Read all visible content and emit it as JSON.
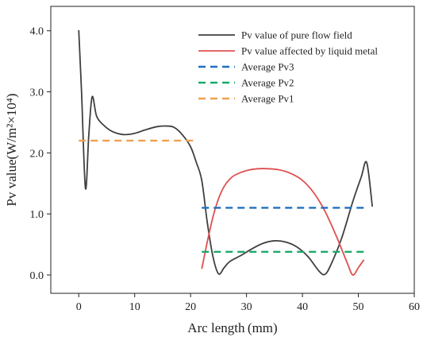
{
  "chart_data": {
    "type": "line",
    "title": "",
    "xlabel": "Arc length (mm)",
    "ylabel": "Pv value(W/m²×10⁴)",
    "xlim": [
      -5,
      60
    ],
    "ylim": [
      -0.3,
      4.4
    ],
    "xticks": [
      0,
      10,
      20,
      30,
      40,
      50,
      60
    ],
    "yticks": [
      0.0,
      1.0,
      2.0,
      3.0,
      4.0
    ],
    "xtick_labels": [
      "0",
      "10",
      "20",
      "30",
      "40",
      "50",
      "60"
    ],
    "ytick_labels": [
      "0.0",
      "1.0",
      "2.0",
      "3.0",
      "4.0"
    ],
    "grid": false,
    "legend_position": "top-right",
    "series": [
      {
        "name": "Pv value of pure flow field",
        "color": "#404040",
        "style": "solid",
        "x": [
          0,
          0.5,
          1.2,
          1.8,
          2.4,
          3.2,
          4.5,
          6,
          8,
          10,
          12,
          14,
          15.5,
          17,
          18.5,
          20,
          21,
          22,
          23,
          24,
          25,
          26,
          27,
          29,
          31,
          33,
          35,
          37,
          39,
          41,
          43,
          44,
          45,
          47,
          49,
          50.5,
          51.5,
          52.5
        ],
        "y": [
          4.01,
          3.0,
          1.42,
          2.3,
          2.92,
          2.6,
          2.45,
          2.35,
          2.3,
          2.32,
          2.38,
          2.43,
          2.44,
          2.42,
          2.3,
          2.1,
          1.85,
          1.55,
          0.85,
          0.3,
          0.02,
          0.12,
          0.22,
          0.32,
          0.43,
          0.52,
          0.56,
          0.54,
          0.46,
          0.3,
          0.06,
          0.01,
          0.15,
          0.6,
          1.2,
          1.6,
          1.84,
          1.12
        ]
      },
      {
        "name": "Pv value affected by liquid metal",
        "color": "#e05050",
        "style": "solid",
        "x": [
          22,
          23,
          24,
          25,
          26,
          27,
          28,
          30,
          32,
          34,
          36,
          38,
          40,
          42,
          44,
          46,
          48,
          49,
          50,
          51
        ],
        "y": [
          0.1,
          0.55,
          0.95,
          1.25,
          1.45,
          1.57,
          1.64,
          1.71,
          1.74,
          1.74,
          1.72,
          1.66,
          1.55,
          1.35,
          1.05,
          0.65,
          0.2,
          0.0,
          0.12,
          0.25
        ]
      },
      {
        "name": "Average Pv3",
        "color": "#1f6fbf",
        "style": "dashed",
        "x": [
          22,
          51
        ],
        "y": [
          1.1,
          1.1
        ]
      },
      {
        "name": "Average Pv2",
        "color": "#1aaa6a",
        "style": "dashed",
        "x": [
          22,
          51
        ],
        "y": [
          0.38,
          0.38
        ]
      },
      {
        "name": "Average Pv1",
        "color": "#f0a050",
        "style": "dashed",
        "x": [
          0,
          20.5
        ],
        "y": [
          2.2,
          2.2
        ]
      }
    ]
  }
}
